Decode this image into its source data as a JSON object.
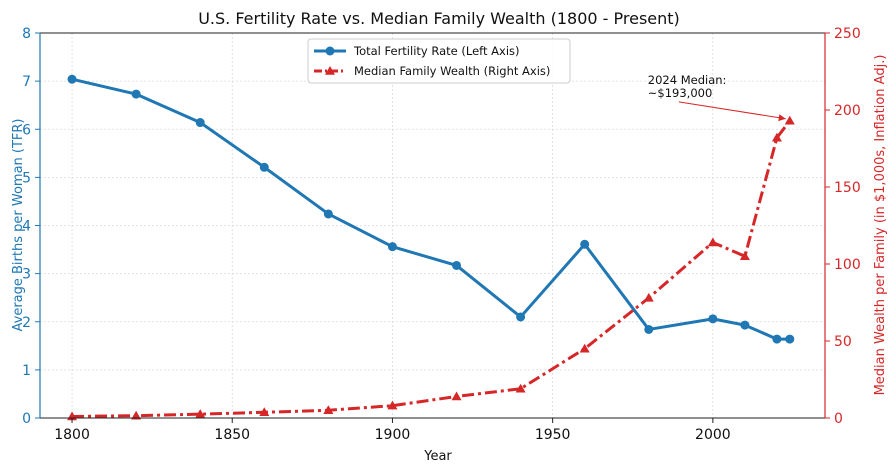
{
  "chart_data": {
    "type": "line",
    "title": "U.S. Fertility Rate vs. Median Family Wealth (1800 - Present)",
    "xlabel": "Year",
    "ylabel_left": "Average Births per Woman (TFR)",
    "ylabel_right": "Median Wealth per Family (in $1,000s, Inflation Adj.)",
    "xlim": [
      1790,
      2035
    ],
    "ylim_left": [
      0,
      8
    ],
    "ylim_right": [
      0,
      250
    ],
    "x_ticks": [
      "1800",
      "1850",
      "1900",
      "1950",
      "2000"
    ],
    "x_tick_values": [
      1800,
      1850,
      1900,
      1950,
      2000
    ],
    "y_left_ticks": [
      "0",
      "1",
      "2",
      "3",
      "4",
      "5",
      "6",
      "7",
      "8"
    ],
    "y_left_tick_values": [
      0,
      1,
      2,
      3,
      4,
      5,
      6,
      7,
      8
    ],
    "y_right_ticks": [
      "0",
      "50",
      "100",
      "150",
      "200",
      "250"
    ],
    "y_right_tick_values": [
      0,
      50,
      100,
      150,
      200,
      250
    ],
    "grid": true,
    "legend_position": "top-center",
    "series": [
      {
        "name": "Total Fertility Rate (Left Axis)",
        "axis": "left",
        "color": "#1f77b4",
        "marker": "circle",
        "linestyle": "solid",
        "x": [
          1800,
          1820,
          1840,
          1860,
          1880,
          1900,
          1920,
          1940,
          1960,
          1980,
          2000,
          2010,
          2020,
          2024
        ],
        "y": [
          7.04,
          6.73,
          6.14,
          5.21,
          4.24,
          3.56,
          3.17,
          2.1,
          3.61,
          1.84,
          2.06,
          1.93,
          1.64,
          1.64
        ]
      },
      {
        "name": "Median Family Wealth (Right Axis)",
        "axis": "right",
        "color": "#d62728",
        "marker": "triangle",
        "linestyle": "dashdot",
        "x": [
          1800,
          1820,
          1840,
          1860,
          1880,
          1900,
          1920,
          1940,
          1960,
          1980,
          2000,
          2010,
          2020,
          2024
        ],
        "y": [
          1,
          1.5,
          2.5,
          3.7,
          5,
          8,
          14,
          19,
          45,
          78,
          114,
          105,
          182,
          193
        ]
      }
    ],
    "annotation": {
      "lines": [
        "2024 Median:",
        "~$193,000"
      ],
      "target_x": 2024,
      "target_y": 193,
      "text_x": 1985,
      "text_y": 215
    }
  }
}
